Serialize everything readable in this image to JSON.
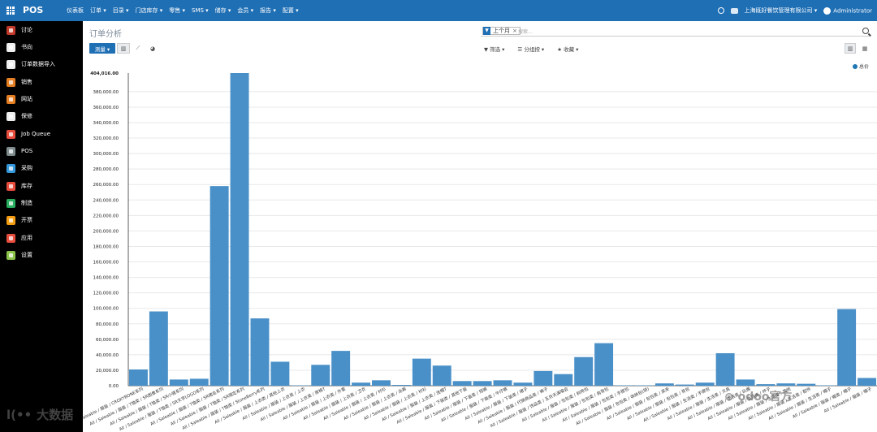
{
  "app": {
    "brand": "POS"
  },
  "topmenu": [
    "仪表板",
    "订单 ▾",
    "目录 ▾",
    "门店库存 ▾",
    "零售 ▾",
    "SMS ▾",
    "储存 ▾",
    "会员 ▾",
    "报告 ▾",
    "配置 ▾"
  ],
  "topright": {
    "company": "上海既好餐饮管理有限公司 ▾",
    "user": "Administrator"
  },
  "sidebar": [
    {
      "label": "讨论",
      "color": "#c0392b"
    },
    {
      "label": "书向",
      "color": "#eeeeee"
    },
    {
      "label": "订单数据导入",
      "color": "#eeeeee"
    },
    {
      "label": "销售",
      "color": "#e67e22"
    },
    {
      "label": "网站",
      "color": "#e67e22"
    },
    {
      "label": "保修",
      "color": "#eeeeee"
    },
    {
      "label": "Job Queue",
      "color": "#e74c3c"
    },
    {
      "label": "POS",
      "color": "#7f8c8d"
    },
    {
      "label": "采购",
      "color": "#3498db"
    },
    {
      "label": "库存",
      "color": "#e74c3c"
    },
    {
      "label": "制造",
      "color": "#27ae60"
    },
    {
      "label": "开票",
      "color": "#f39c12"
    },
    {
      "label": "应用",
      "color": "#e74c3c"
    },
    {
      "label": "设置",
      "color": "#8bc34a"
    }
  ],
  "page": {
    "title": "订单分析"
  },
  "search": {
    "facet": "上个月",
    "placeholder": "搜索..."
  },
  "toolbar": {
    "measures": "测量 ▾",
    "filter": "筛选 ▾",
    "group": "分组按 ▾",
    "favorite": "收藏 ▾"
  },
  "chart_data": {
    "type": "bar",
    "series": [
      {
        "name": "总价"
      }
    ],
    "max_label": "404,016.00",
    "ylim": [
      0,
      404016
    ],
    "yticks": [
      20000,
      40000,
      60000,
      80000,
      100000,
      120000,
      140000,
      160000,
      180000,
      200000,
      220000,
      240000,
      260000,
      280000,
      300000,
      320000,
      340000,
      360000,
      380000
    ],
    "categories": [
      "All / Saleable / 服装 / CROXYBONE系列",
      "All / Saleable / 服装 / T恤类 / SR图像系列",
      "All / Saleable / 服装 / T恤类 / SR小猪系列",
      "All / Saleable / 服装 / T恤类 / SR文字LOGO系列",
      "All / Saleable / 服装 / T恤类 / SR猪名系列",
      "All / Saleable / 服装 / T恤类 / SR限定系列",
      "All / Saleable / 服装 / T恤类 / StoneBerry系列",
      "All / Saleable / 服装 / 上衣类 / 其他上衣",
      "All / Saleable / 服装 / 上衣类 / 上衣",
      "All / Saleable / 服装 / 上衣类 / 厚棉T",
      "All / Saleable / 服装 / 上衣类 / 外套",
      "All / Saleable / 服装 / 上衣类 / 卫衣",
      "All / Saleable / 服装 / 上衣类 / 衬衫",
      "All / Saleable / 服装 / 上衣类 / 泳裤",
      "All / Saleable / 服装 / 上衣类 / 衬衫",
      "All / Saleable / 服装 / 上衣类 / 连帽T",
      "All / Saleable / 服装 / 下装类 / 其他下装",
      "All / Saleable / 服装 / 下装类 / 短裤",
      "All / Saleable / 服装 / 下装类 / 牛仔裤",
      "All / Saleable / 服装 / 下装类 / 裙子",
      "All / Saleable / 服装 / 代销商品类 / 裤子",
      "All / Saleable / 服装 / 饰品类 / 五月天演唱会",
      "All / Saleable / 服装 / 包包类 / 斜挎包",
      "All / Saleable / 服装 / 包包类 / 肩背包",
      "All / Saleable / 服装 / 包包类 / 手提包",
      "All / Saleable / 服装 / 包包类 / 收纳包(袋)",
      "All / Saleable / 服装 / 包包类 / 皮夹",
      "All / Saleable / 服装 / 包包类 / 背包",
      "All / Saleable / 服装 / 生活类 / 手提包",
      "All / Saleable / 服装 / 生活类 / 文具",
      "All / Saleable / 服装 / 生活类 / 玩偶",
      "All / Saleable / 服装 / 生活类 / 杯子",
      "All / Saleable / 服装 / 生活类 / 其他",
      "All / Saleable / 服装 / 生活类 / 配件",
      "All / Saleable / 服装 / 生活类 / 帽子",
      "All / Saleable / 服装 / 帽类 / 帽子",
      "All / Saleable / 服装 / 帽子"
    ],
    "values": [
      21000,
      96000,
      8000,
      9000,
      258000,
      404016,
      87000,
      31000,
      0,
      27000,
      45000,
      4000,
      7000,
      1000,
      35000,
      26000,
      6000,
      6000,
      7000,
      4000,
      19000,
      15000,
      37000,
      55000,
      0,
      0,
      3000,
      1500,
      4000,
      42000,
      8000,
      2000,
      3000,
      2500,
      0,
      99000,
      10000
    ]
  },
  "watermarks": {
    "left": "大数据",
    "right": "odoo官方"
  }
}
